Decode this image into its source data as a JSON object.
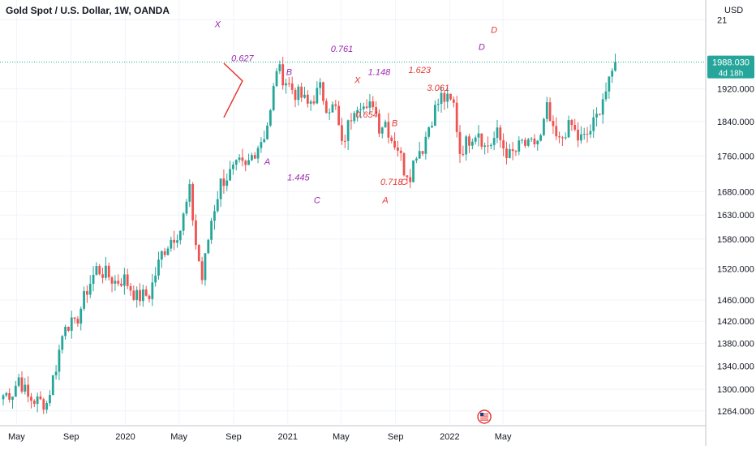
{
  "title": "Gold Spot / U.S. Dollar, 1W, OANDA",
  "currency": "USD",
  "price_badge": {
    "value": "1988.030",
    "countdown": "4d 18h",
    "color": "#26a69a"
  },
  "colors": {
    "up": "#26a69a",
    "down": "#ef5350",
    "purple": "#9c27b0",
    "red": "#e53935",
    "grid": "#f0f3fa",
    "axis_text": "#131722"
  },
  "event_icon": "us-flag-icon",
  "chart_data": {
    "type": "candlestick",
    "title": "Gold Spot / U.S. Dollar, 1W, OANDA",
    "xlabel": "",
    "ylabel": "",
    "y_scale": "log",
    "ylim": [
      1240,
      2110
    ],
    "y_ticks": [
      "1264.000",
      "1300.000",
      "1340.000",
      "1380.000",
      "1420.000",
      "1460.000",
      "1520.000",
      "1580.000",
      "1630.000",
      "1680.000",
      "1760.000",
      "1840.000",
      "1920.000",
      "21"
    ],
    "x_ticks": [
      "May",
      "Sep",
      "2020",
      "May",
      "Sep",
      "2021",
      "May",
      "Sep",
      "2022",
      "May"
    ],
    "anchors": [
      {
        "i": 0,
        "c": 1290
      },
      {
        "i": 3,
        "c": 1295
      },
      {
        "i": 5,
        "c": 1320
      },
      {
        "i": 8,
        "c": 1285
      },
      {
        "i": 11,
        "c": 1280
      },
      {
        "i": 14,
        "c": 1277
      },
      {
        "i": 17,
        "c": 1340
      },
      {
        "i": 20,
        "c": 1420
      },
      {
        "i": 23,
        "c": 1410
      },
      {
        "i": 27,
        "c": 1480
      },
      {
        "i": 30,
        "c": 1520
      },
      {
        "i": 33,
        "c": 1510
      },
      {
        "i": 36,
        "c": 1495
      },
      {
        "i": 39,
        "c": 1500
      },
      {
        "i": 43,
        "c": 1465
      },
      {
        "i": 47,
        "c": 1470
      },
      {
        "i": 51,
        "c": 1550
      },
      {
        "i": 54,
        "c": 1580
      },
      {
        "i": 57,
        "c": 1600
      },
      {
        "i": 60,
        "c": 1680
      },
      {
        "i": 62,
        "c": 1570
      },
      {
        "i": 64,
        "c": 1500
      },
      {
        "i": 67,
        "c": 1620
      },
      {
        "i": 70,
        "c": 1700
      },
      {
        "i": 73,
        "c": 1720
      },
      {
        "i": 76,
        "c": 1740
      },
      {
        "i": 78,
        "c": 1730
      },
      {
        "i": 80,
        "c": 1760
      },
      {
        "i": 84,
        "c": 1810
      },
      {
        "i": 86,
        "c": 1860
      },
      {
        "i": 88,
        "c": 1975
      },
      {
        "i": 90,
        "c": 1950
      },
      {
        "i": 92,
        "c": 1930
      },
      {
        "i": 94,
        "c": 1910
      },
      {
        "i": 96,
        "c": 1900
      },
      {
        "i": 98,
        "c": 1880
      },
      {
        "i": 100,
        "c": 1900
      },
      {
        "i": 102,
        "c": 1920
      },
      {
        "i": 104,
        "c": 1880
      },
      {
        "i": 107,
        "c": 1870
      },
      {
        "i": 109,
        "c": 1780
      },
      {
        "i": 111,
        "c": 1830
      },
      {
        "i": 113,
        "c": 1880
      },
      {
        "i": 115,
        "c": 1890
      },
      {
        "i": 117,
        "c": 1860
      },
      {
        "i": 119,
        "c": 1890
      },
      {
        "i": 121,
        "c": 1830
      },
      {
        "i": 123,
        "c": 1840
      },
      {
        "i": 125,
        "c": 1800
      },
      {
        "i": 127,
        "c": 1780
      },
      {
        "i": 129,
        "c": 1730
      },
      {
        "i": 131,
        "c": 1720
      },
      {
        "i": 133,
        "c": 1770
      },
      {
        "i": 135,
        "c": 1780
      },
      {
        "i": 137,
        "c": 1830
      },
      {
        "i": 139,
        "c": 1870
      },
      {
        "i": 141,
        "c": 1900
      },
      {
        "i": 143,
        "c": 1890
      },
      {
        "i": 145,
        "c": 1880
      },
      {
        "i": 147,
        "c": 1770
      },
      {
        "i": 149,
        "c": 1790
      },
      {
        "i": 151,
        "c": 1810
      },
      {
        "i": 153,
        "c": 1820
      },
      {
        "i": 155,
        "c": 1780
      },
      {
        "i": 157,
        "c": 1790
      },
      {
        "i": 159,
        "c": 1810
      },
      {
        "i": 161,
        "c": 1780
      },
      {
        "i": 163,
        "c": 1760
      },
      {
        "i": 165,
        "c": 1770
      },
      {
        "i": 167,
        "c": 1790
      },
      {
        "i": 169,
        "c": 1780
      },
      {
        "i": 171,
        "c": 1790
      },
      {
        "i": 173,
        "c": 1800
      },
      {
        "i": 175,
        "c": 1870
      },
      {
        "i": 177,
        "c": 1810
      },
      {
        "i": 179,
        "c": 1790
      },
      {
        "i": 181,
        "c": 1820
      },
      {
        "i": 183,
        "c": 1830
      },
      {
        "i": 185,
        "c": 1800
      },
      {
        "i": 187,
        "c": 1800
      },
      {
        "i": 189,
        "c": 1820
      },
      {
        "i": 191,
        "c": 1850
      },
      {
        "i": 193,
        "c": 1900
      },
      {
        "i": 195,
        "c": 1930
      },
      {
        "i": 197,
        "c": 1988
      }
    ],
    "triangle": [
      {
        "x": "2020-08-10",
        "y": 1985
      },
      {
        "x": "2020-09-21",
        "y": 1940
      },
      {
        "x": "2020-08-10",
        "y": 1850
      }
    ],
    "dotted_line_y": 1988
  },
  "labels": [
    {
      "text": "X",
      "color": "purple",
      "x": "2020-07-27",
      "y": 2080
    },
    {
      "text": "0.627",
      "color": "purple",
      "x": "2020-09-21",
      "y": 1990
    },
    {
      "text": "B",
      "color": "purple",
      "x": "2021-01-04",
      "y": 1955
    },
    {
      "text": "0.761",
      "color": "purple",
      "x": "2021-05-03",
      "y": 2015
    },
    {
      "text": "X",
      "color": "red",
      "x": "2021-06-07",
      "y": 1935
    },
    {
      "text": "1.148",
      "color": "purple",
      "x": "2021-07-26",
      "y": 1955
    },
    {
      "text": "1.623",
      "color": "red",
      "x": "2021-10-25",
      "y": 1960
    },
    {
      "text": "D",
      "color": "red",
      "x": "2022-04-11",
      "y": 2065
    },
    {
      "text": "D",
      "color": "purple",
      "x": "2022-03-14",
      "y": 2020
    },
    {
      "text": "3.061",
      "color": "red",
      "x": "2021-12-06",
      "y": 1915
    },
    {
      "text": "0.654",
      "color": "red",
      "x": "2021-06-28",
      "y": 1850
    },
    {
      "text": "B",
      "color": "red",
      "x": "2021-08-30",
      "y": 1830
    },
    {
      "text": "A",
      "color": "purple",
      "x": "2020-11-16",
      "y": 1740
    },
    {
      "text": "1.445",
      "color": "purple",
      "x": "2021-01-25",
      "y": 1705
    },
    {
      "text": "C",
      "color": "purple",
      "x": "2021-03-08",
      "y": 1655
    },
    {
      "text": "0.718",
      "color": "red",
      "x": "2021-08-23",
      "y": 1695
    },
    {
      "text": "C",
      "color": "red",
      "x": "2021-09-20",
      "y": 1695
    },
    {
      "text": "A",
      "color": "red",
      "x": "2021-08-09",
      "y": 1655
    }
  ]
}
